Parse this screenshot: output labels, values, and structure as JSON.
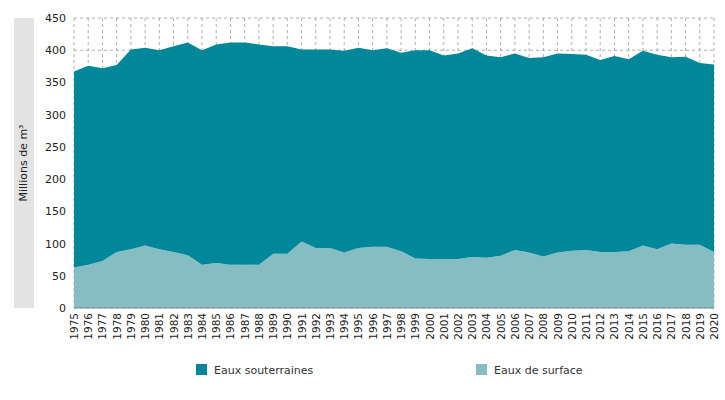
{
  "chart_data": {
    "type": "area",
    "stacked": true,
    "grid": true,
    "y_label": "Millions de m³",
    "categories": [
      "1975",
      "1976",
      "1977",
      "1978",
      "1979",
      "1980",
      "1981",
      "1982",
      "1983",
      "1984",
      "1985",
      "1986",
      "1987",
      "1988",
      "1989",
      "1990",
      "1991",
      "1992",
      "1993",
      "1994",
      "1995",
      "1996",
      "1997",
      "1998",
      "1999",
      "2000",
      "2001",
      "2002",
      "2003",
      "2004",
      "2005",
      "2006",
      "2007",
      "2008",
      "2009",
      "2010",
      "2011",
      "2012",
      "2013",
      "2014",
      "2015",
      "2016",
      "2017",
      "2018",
      "2019",
      "2020"
    ],
    "series": [
      {
        "name": "Eaux souterraines",
        "color": "#00879a",
        "values": [
          304,
          309,
          299,
          290,
          310,
          307,
          309,
          319,
          330,
          333,
          339,
          345,
          345,
          342,
          322,
          322,
          298,
          308,
          308,
          313,
          311,
          305,
          308,
          308,
          323,
          324,
          316,
          319,
          324,
          314,
          308,
          305,
          302,
          309,
          309,
          305,
          303,
          298,
          304,
          298,
          302,
          302,
          289,
          292,
          282,
          291
        ]
      },
      {
        "name": "Eaux de surface",
        "color": "#86bdc2",
        "values": [
          63,
          67,
          73,
          87,
          91,
          97,
          91,
          87,
          82,
          67,
          70,
          67,
          67,
          67,
          84,
          84,
          103,
          93,
          93,
          86,
          93,
          95,
          95,
          88,
          77,
          76,
          76,
          76,
          79,
          78,
          81,
          90,
          86,
          80,
          86,
          89,
          90,
          87,
          87,
          88,
          97,
          91,
          100,
          98,
          98,
          87
        ]
      }
    ],
    "ylim": [
      0,
      450
    ],
    "yticks": [
      0,
      50,
      100,
      150,
      200,
      250,
      300,
      350,
      400,
      450
    ],
    "legend": "bottom"
  }
}
